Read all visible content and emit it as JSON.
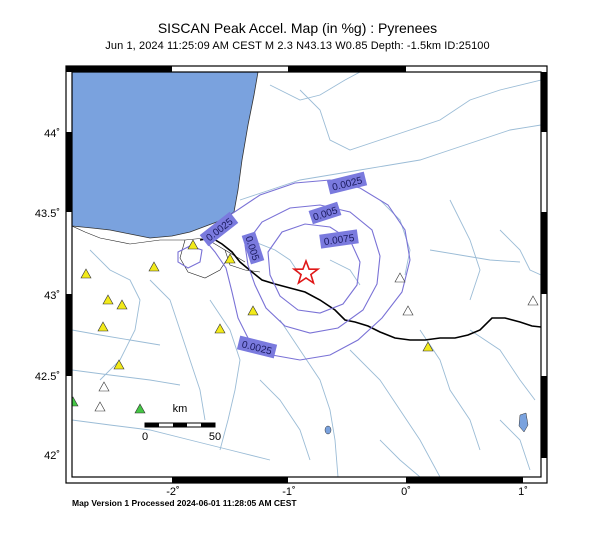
{
  "header": {
    "title": "SISCAN Peak Accel. Map (in %g) : Pyrenees",
    "subtitle": "Jun  1, 2024 11:25:09 AM CEST   M 2.3   N43.13 W0.85   Depth: -1.5km   ID:25100"
  },
  "axes": {
    "lat_labels": [
      "44˚",
      "43.5˚",
      "43˚",
      "42.5˚",
      "42˚"
    ],
    "lon_labels": [
      "-2˚",
      "-1˚",
      "0˚",
      "1˚"
    ]
  },
  "contours": {
    "labels": [
      "0.0025",
      "0.005",
      "0.0075",
      "0.0025",
      "0.005",
      "0.0025"
    ]
  },
  "scalebar": {
    "unit": "km",
    "start": "0",
    "end": "50"
  },
  "colors": {
    "sea": "#7aa2de",
    "river": "#9bbcd6",
    "contour": "#7a72d6",
    "label_box": "#7a7ade",
    "station_yellow": "#f2ea1a",
    "station_green": "#44c644",
    "epicenter": "#e01818"
  },
  "epicenter_icon": "red-star-icon",
  "station_icon": "triangle-icon",
  "footer": {
    "text": "Map Version 1 Processed 2024-06-01 11:28:05 AM CEST"
  }
}
